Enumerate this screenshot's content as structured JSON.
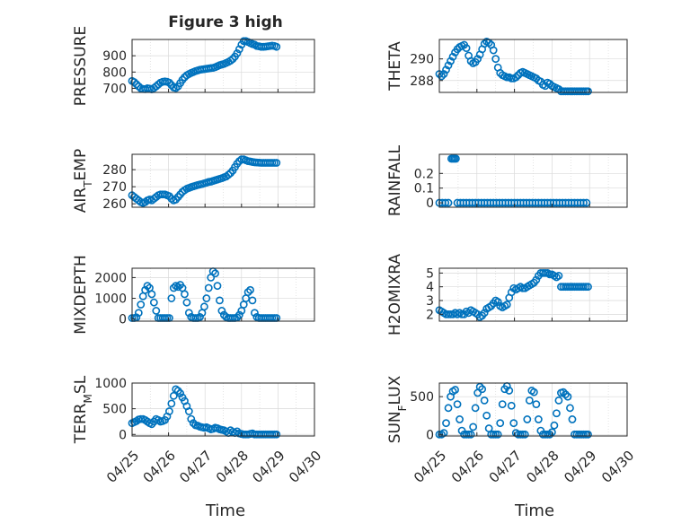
{
  "figure": {
    "title": "Figure 3 high",
    "xlabel": "Time",
    "xticks": [
      "04/25",
      "04/26",
      "04/27",
      "04/28",
      "04/29",
      "04/30"
    ]
  },
  "style": {
    "marker_color": "#0072BD",
    "axis_color": "#262626",
    "grid_color": "#d9d9d9"
  },
  "chart_data": [
    {
      "type": "scatter",
      "ylabel": "PRESSURE",
      "xlim": [
        0,
        5
      ],
      "ylim": [
        675,
        1000
      ],
      "yticks": [
        700,
        800,
        900
      ],
      "x": [
        0,
        0.06,
        0.12,
        0.18,
        0.24,
        0.3,
        0.36,
        0.42,
        0.48,
        0.54,
        0.6,
        0.66,
        0.72,
        0.78,
        0.84,
        0.9,
        0.96,
        1.02,
        1.08,
        1.14,
        1.2,
        1.26,
        1.32,
        1.38,
        1.44,
        1.5,
        1.56,
        1.62,
        1.68,
        1.74,
        1.8,
        1.86,
        1.92,
        1.98,
        2.04,
        2.1,
        2.16,
        2.22,
        2.28,
        2.34,
        2.4,
        2.46,
        2.52,
        2.58,
        2.64,
        2.7,
        2.76,
        2.82,
        2.88,
        2.94,
        3.0,
        3.06,
        3.12,
        3.18,
        3.24,
        3.3,
        3.36,
        3.42,
        3.48,
        3.54,
        3.6,
        3.66,
        3.72,
        3.78,
        3.84,
        3.9,
        3.96
      ],
      "y": [
        745,
        738,
        725,
        712,
        700,
        696,
        695,
        700,
        698,
        694,
        702,
        712,
        724,
        735,
        740,
        742,
        740,
        735,
        720,
        705,
        702,
        712,
        732,
        752,
        768,
        780,
        788,
        795,
        800,
        806,
        810,
        814,
        816,
        818,
        820,
        822,
        824,
        826,
        830,
        836,
        842,
        846,
        850,
        856,
        862,
        870,
        880,
        895,
        915,
        940,
        968,
        990,
        990,
        985,
        978,
        972,
        968,
        960,
        958,
        955,
        955,
        956,
        958,
        960,
        962,
        960,
        955
      ]
    },
    {
      "type": "scatter",
      "ylabel": "THETA",
      "xlim": [
        0,
        5
      ],
      "ylim": [
        286.9,
        291.8
      ],
      "yticks": [
        288,
        290
      ],
      "x": [
        0,
        0.06,
        0.12,
        0.18,
        0.24,
        0.3,
        0.36,
        0.42,
        0.48,
        0.54,
        0.6,
        0.66,
        0.72,
        0.78,
        0.84,
        0.9,
        0.96,
        1.02,
        1.08,
        1.14,
        1.2,
        1.26,
        1.32,
        1.38,
        1.44,
        1.5,
        1.56,
        1.62,
        1.68,
        1.74,
        1.8,
        1.86,
        1.92,
        1.98,
        2.04,
        2.1,
        2.16,
        2.22,
        2.28,
        2.34,
        2.4,
        2.46,
        2.52,
        2.58,
        2.64,
        2.7,
        2.76,
        2.82,
        2.88,
        2.94,
        3.0,
        3.06,
        3.12,
        3.18,
        3.24,
        3.3,
        3.36,
        3.42,
        3.48,
        3.54,
        3.6,
        3.66,
        3.72,
        3.78,
        3.84,
        3.9,
        3.96
      ],
      "y": [
        288.6,
        288.4,
        288.6,
        289.0,
        289.4,
        289.8,
        290.2,
        290.6,
        290.9,
        291.1,
        291.2,
        291.3,
        291.0,
        290.3,
        289.8,
        289.6,
        289.7,
        290.0,
        290.4,
        290.9,
        291.4,
        291.6,
        291.5,
        291.3,
        290.8,
        290.0,
        289.2,
        288.7,
        288.5,
        288.4,
        288.3,
        288.3,
        288.2,
        288.2,
        288.3,
        288.5,
        288.7,
        288.8,
        288.7,
        288.6,
        288.5,
        288.4,
        288.3,
        288.2,
        288.0,
        287.9,
        287.6,
        287.5,
        287.8,
        287.7,
        287.5,
        287.4,
        287.3,
        287.2,
        287.0,
        287.0,
        287.0,
        287.0,
        287.0,
        287.0,
        287.0,
        287.0,
        287.0,
        287.0,
        287.0,
        287.0,
        287.0
      ]
    },
    {
      "type": "scatter",
      "ylabel": "AIR_TEMP",
      "ylabel_display": [
        "AIR",
        "T",
        "EMP"
      ],
      "xlim": [
        0,
        5
      ],
      "ylim": [
        258,
        289
      ],
      "yticks": [
        260,
        270,
        280
      ],
      "x": [
        0,
        0.06,
        0.12,
        0.18,
        0.24,
        0.3,
        0.36,
        0.42,
        0.48,
        0.54,
        0.6,
        0.66,
        0.72,
        0.78,
        0.84,
        0.9,
        0.96,
        1.02,
        1.08,
        1.14,
        1.2,
        1.26,
        1.32,
        1.38,
        1.44,
        1.5,
        1.56,
        1.62,
        1.68,
        1.74,
        1.8,
        1.86,
        1.92,
        1.98,
        2.04,
        2.1,
        2.16,
        2.22,
        2.28,
        2.34,
        2.4,
        2.46,
        2.52,
        2.58,
        2.64,
        2.7,
        2.76,
        2.82,
        2.88,
        2.94,
        3.0,
        3.06,
        3.12,
        3.18,
        3.24,
        3.3,
        3.36,
        3.42,
        3.48,
        3.54,
        3.6,
        3.66,
        3.72,
        3.78,
        3.84,
        3.9,
        3.96
      ],
      "y": [
        265,
        264,
        263,
        262,
        261,
        260.5,
        261,
        262,
        262.5,
        262,
        263,
        264,
        265,
        265.5,
        265.5,
        265.5,
        265,
        264.5,
        263,
        262,
        262.5,
        264,
        265.5,
        267,
        268,
        268.8,
        269.3,
        269.8,
        270.2,
        270.6,
        271,
        271.3,
        271.6,
        272,
        272.4,
        272.8,
        273,
        273.4,
        273.8,
        274.2,
        274.6,
        275,
        275.5,
        276,
        277,
        278,
        279.5,
        281.5,
        283.5,
        285,
        286,
        286,
        285.5,
        285,
        284.8,
        284.5,
        284.3,
        284.2,
        284.1,
        284,
        284,
        284,
        284,
        284,
        284,
        284,
        284
      ]
    },
    {
      "type": "scatter",
      "ylabel": "RAINFALL",
      "xlim": [
        0,
        5
      ],
      "ylim": [
        -0.03,
        0.33
      ],
      "yticks": [
        0,
        0.1,
        0.2
      ],
      "ytick_labels": [
        "0",
        "0.1",
        "0.2"
      ],
      "x": [
        0,
        0.08,
        0.16,
        0.24,
        0.32,
        0.36,
        0.4,
        0.44,
        0.48,
        0.56,
        0.64,
        0.72,
        0.8,
        0.88,
        0.96,
        1.04,
        1.12,
        1.2,
        1.28,
        1.36,
        1.44,
        1.52,
        1.6,
        1.68,
        1.76,
        1.84,
        1.92,
        2.0,
        2.08,
        2.16,
        2.24,
        2.32,
        2.4,
        2.48,
        2.56,
        2.64,
        2.72,
        2.8,
        2.88,
        2.96,
        3.04,
        3.12,
        3.2,
        3.28,
        3.36,
        3.44,
        3.52,
        3.6,
        3.68,
        3.76,
        3.84,
        3.92
      ],
      "y": [
        0,
        0,
        0,
        0,
        0.3,
        0.3,
        0.3,
        0.3,
        0,
        0,
        0,
        0,
        0,
        0,
        0,
        0,
        0,
        0,
        0,
        0,
        0,
        0,
        0,
        0,
        0,
        0,
        0,
        0,
        0,
        0,
        0,
        0,
        0,
        0,
        0,
        0,
        0,
        0,
        0,
        0,
        0,
        0,
        0,
        0,
        0,
        0,
        0,
        0,
        0,
        0,
        0,
        0
      ]
    },
    {
      "type": "scatter",
      "ylabel": "MIXDEPTH",
      "xlim": [
        0,
        5
      ],
      "ylim": [
        -100,
        2450
      ],
      "yticks": [
        0,
        1000,
        2000
      ],
      "x": [
        0,
        0.06,
        0.12,
        0.18,
        0.24,
        0.3,
        0.36,
        0.42,
        0.48,
        0.54,
        0.6,
        0.66,
        0.72,
        0.78,
        0.84,
        0.9,
        0.96,
        1.02,
        1.08,
        1.14,
        1.2,
        1.26,
        1.32,
        1.38,
        1.44,
        1.5,
        1.56,
        1.62,
        1.68,
        1.74,
        1.8,
        1.86,
        1.92,
        1.98,
        2.04,
        2.1,
        2.16,
        2.22,
        2.28,
        2.34,
        2.4,
        2.46,
        2.52,
        2.58,
        2.64,
        2.7,
        2.76,
        2.82,
        2.88,
        2.94,
        3.0,
        3.06,
        3.12,
        3.18,
        3.24,
        3.3,
        3.36,
        3.42,
        3.48,
        3.54,
        3.6,
        3.66,
        3.72,
        3.78,
        3.84,
        3.9,
        3.96
      ],
      "y": [
        50,
        50,
        80,
        300,
        700,
        1100,
        1400,
        1600,
        1500,
        1200,
        800,
        400,
        50,
        50,
        50,
        50,
        50,
        50,
        1000,
        1500,
        1600,
        1550,
        1650,
        1500,
        1200,
        800,
        300,
        100,
        50,
        50,
        50,
        100,
        300,
        600,
        1000,
        1500,
        2000,
        2300,
        2200,
        1600,
        900,
        400,
        200,
        100,
        50,
        50,
        50,
        50,
        80,
        200,
        400,
        700,
        1000,
        1300,
        1400,
        900,
        300,
        100,
        50,
        50,
        50,
        50,
        50,
        50,
        50,
        50,
        50
      ]
    },
    {
      "type": "scatter",
      "ylabel": "H2OMIXRA",
      "xlim": [
        0,
        5
      ],
      "ylim": [
        1.5,
        5.35
      ],
      "yticks": [
        2,
        3,
        4,
        5
      ],
      "x": [
        0,
        0.06,
        0.12,
        0.18,
        0.24,
        0.3,
        0.36,
        0.42,
        0.48,
        0.54,
        0.6,
        0.66,
        0.72,
        0.78,
        0.84,
        0.9,
        0.96,
        1.02,
        1.08,
        1.14,
        1.2,
        1.26,
        1.32,
        1.38,
        1.44,
        1.5,
        1.56,
        1.62,
        1.68,
        1.74,
        1.8,
        1.86,
        1.92,
        1.98,
        2.04,
        2.1,
        2.16,
        2.22,
        2.28,
        2.34,
        2.4,
        2.46,
        2.52,
        2.58,
        2.64,
        2.7,
        2.76,
        2.82,
        2.88,
        2.94,
        3.0,
        3.06,
        3.12,
        3.18,
        3.24,
        3.3,
        3.36,
        3.42,
        3.48,
        3.54,
        3.6,
        3.66,
        3.72,
        3.78,
        3.84,
        3.9,
        3.96
      ],
      "y": [
        2.3,
        2.2,
        2.1,
        2.0,
        2.0,
        2.0,
        2.0,
        2.1,
        2.0,
        2.1,
        2.0,
        2.0,
        2.2,
        2.1,
        2.3,
        2.2,
        2.1,
        2.0,
        1.8,
        1.9,
        2.1,
        2.4,
        2.5,
        2.6,
        2.8,
        3.0,
        2.9,
        2.6,
        2.5,
        2.6,
        2.7,
        3.2,
        3.6,
        3.9,
        3.8,
        3.9,
        4.0,
        3.9,
        3.9,
        4.0,
        4.1,
        4.2,
        4.3,
        4.5,
        4.8,
        5.0,
        5.0,
        5.0,
        5.0,
        4.9,
        4.9,
        4.8,
        4.7,
        4.8,
        4.0,
        4.0,
        4.0,
        4.0,
        4.0,
        4.0,
        4.0,
        4.0,
        4.0,
        4.0,
        4.0,
        4.0,
        4.0
      ]
    },
    {
      "type": "scatter",
      "ylabel": "TERR_MSL",
      "ylabel_display": [
        "TERR",
        "M",
        "SL"
      ],
      "xlim": [
        0,
        5
      ],
      "ylim": [
        -30,
        1000
      ],
      "yticks": [
        0,
        500,
        1000
      ],
      "x": [
        0,
        0.06,
        0.12,
        0.18,
        0.24,
        0.3,
        0.36,
        0.42,
        0.48,
        0.54,
        0.6,
        0.66,
        0.72,
        0.78,
        0.84,
        0.9,
        0.96,
        1.02,
        1.08,
        1.14,
        1.2,
        1.26,
        1.32,
        1.38,
        1.44,
        1.5,
        1.56,
        1.62,
        1.68,
        1.74,
        1.8,
        1.86,
        1.92,
        1.98,
        2.04,
        2.1,
        2.16,
        2.22,
        2.28,
        2.34,
        2.4,
        2.46,
        2.52,
        2.58,
        2.64,
        2.7,
        2.76,
        2.82,
        2.88,
        2.94,
        3.0,
        3.06,
        3.12,
        3.18,
        3.24,
        3.3,
        3.36,
        3.42,
        3.48,
        3.54,
        3.6,
        3.66,
        3.72,
        3.78,
        3.84,
        3.9,
        3.96
      ],
      "y": [
        220,
        240,
        260,
        290,
        300,
        300,
        280,
        250,
        220,
        200,
        250,
        300,
        280,
        250,
        260,
        280,
        350,
        450,
        600,
        750,
        880,
        850,
        800,
        720,
        650,
        550,
        450,
        300,
        220,
        180,
        170,
        150,
        140,
        130,
        140,
        120,
        100,
        110,
        130,
        120,
        100,
        90,
        80,
        60,
        30,
        80,
        50,
        30,
        60,
        20,
        10,
        0,
        0,
        0,
        10,
        20,
        0,
        0,
        0,
        0,
        0,
        0,
        0,
        0,
        0,
        0,
        0
      ]
    },
    {
      "type": "scatter",
      "ylabel": "SUN_FLUX",
      "ylabel_display": [
        "SUN",
        "F",
        "LUX"
      ],
      "xlim": [
        0,
        5
      ],
      "ylim": [
        -20,
        680
      ],
      "yticks": [
        0,
        500
      ],
      "x": [
        0,
        0.06,
        0.12,
        0.18,
        0.24,
        0.3,
        0.36,
        0.42,
        0.48,
        0.54,
        0.6,
        0.66,
        0.72,
        0.78,
        0.84,
        0.9,
        0.96,
        1.02,
        1.08,
        1.14,
        1.2,
        1.26,
        1.32,
        1.38,
        1.44,
        1.5,
        1.56,
        1.62,
        1.68,
        1.74,
        1.8,
        1.86,
        1.92,
        1.98,
        2.04,
        2.1,
        2.16,
        2.22,
        2.28,
        2.34,
        2.4,
        2.46,
        2.52,
        2.58,
        2.64,
        2.7,
        2.76,
        2.82,
        2.88,
        2.94,
        3.0,
        3.06,
        3.12,
        3.18,
        3.24,
        3.3,
        3.36,
        3.42,
        3.48,
        3.54,
        3.6,
        3.66,
        3.72,
        3.78,
        3.84,
        3.9,
        3.96
      ],
      "y": [
        0,
        0,
        20,
        150,
        350,
        500,
        570,
        590,
        400,
        200,
        50,
        0,
        0,
        0,
        0,
        100,
        350,
        550,
        630,
        600,
        450,
        250,
        80,
        0,
        0,
        0,
        0,
        150,
        400,
        600,
        640,
        580,
        380,
        150,
        20,
        0,
        0,
        0,
        0,
        200,
        450,
        580,
        560,
        400,
        200,
        50,
        0,
        0,
        0,
        0,
        30,
        120,
        280,
        450,
        550,
        560,
        530,
        500,
        350,
        200,
        0,
        0,
        0,
        0,
        0,
        0,
        0
      ]
    }
  ]
}
